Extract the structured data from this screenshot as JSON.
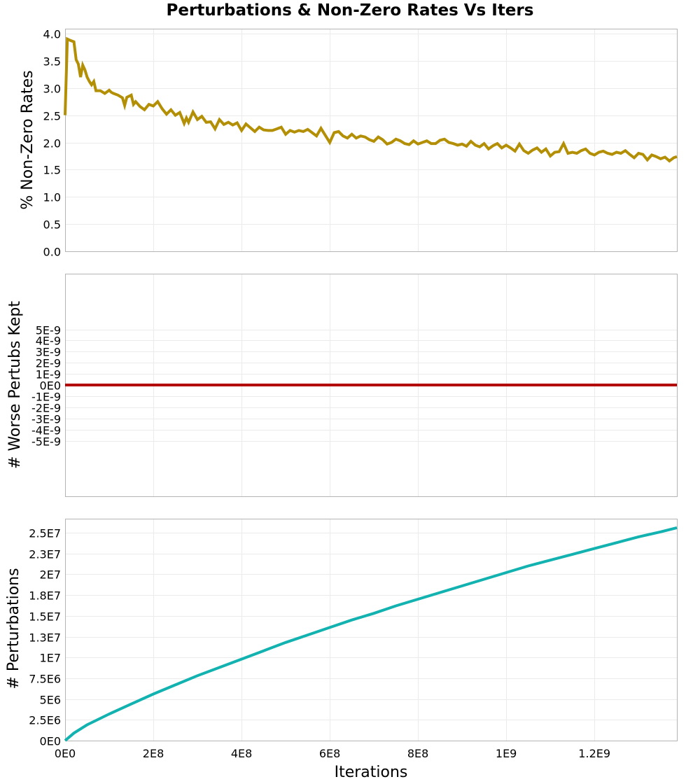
{
  "title": "Perturbations & Non-Zero Rates Vs Iters",
  "colors": {
    "nonzero": "#b38f06",
    "worse": "#b30000",
    "perturbations": "#12b2b0",
    "grid": "#ebebeb",
    "frame": "#b4b4b4"
  },
  "chart_data": [
    {
      "type": "line",
      "title": "Perturbations & Non-Zero Rates Vs Iters",
      "xlabel": "",
      "ylabel": "% Non-Zero Rates",
      "ylim": [
        0,
        4.0
      ],
      "xlim": [
        0,
        1387000000
      ],
      "grid": true,
      "yticks": [
        "0.0",
        "0.5",
        "1.0",
        "1.5",
        "2.0",
        "2.5",
        "3.0",
        "3.5",
        "4.0"
      ],
      "series": [
        {
          "name": "% Non-Zero Rates",
          "color": "#b38f06",
          "x": [
            0,
            5000000.0,
            10000000.0,
            20000000.0,
            25000000.0,
            30000000.0,
            35000000.0,
            40000000.0,
            45000000.0,
            50000000.0,
            55000000.0,
            60000000.0,
            65000000.0,
            70000000.0,
            75000000.0,
            80000000.0,
            90000000.0,
            100000000.0,
            105000000.0,
            110000000.0,
            120000000.0,
            130000000.0,
            135000000.0,
            140000000.0,
            150000000.0,
            155000000.0,
            160000000.0,
            170000000.0,
            180000000.0,
            190000000.0,
            200000000.0,
            210000000.0,
            220000000.0,
            230000000.0,
            240000000.0,
            250000000.0,
            260000000.0,
            270000000.0,
            275000000.0,
            280000000.0,
            290000000.0,
            300000000.0,
            310000000.0,
            320000000.0,
            330000000.0,
            340000000.0,
            350000000.0,
            360000000.0,
            370000000.0,
            380000000.0,
            390000000.0,
            400000000.0,
            410000000.0,
            420000000.0,
            430000000.0,
            440000000.0,
            450000000.0,
            460000000.0,
            470000000.0,
            480000000.0,
            490000000.0,
            500000000.0,
            510000000.0,
            520000000.0,
            530000000.0,
            540000000.0,
            550000000.0,
            560000000.0,
            570000000.0,
            580000000.0,
            590000000.0,
            600000000.0,
            610000000.0,
            620000000.0,
            630000000.0,
            640000000.0,
            650000000.0,
            660000000.0,
            670000000.0,
            680000000.0,
            690000000.0,
            700000000.0,
            710000000.0,
            720000000.0,
            730000000.0,
            740000000.0,
            750000000.0,
            760000000.0,
            770000000.0,
            780000000.0,
            790000000.0,
            800000000.0,
            810000000.0,
            820000000.0,
            830000000.0,
            840000000.0,
            850000000.0,
            860000000.0,
            870000000.0,
            880000000.0,
            890000000.0,
            900000000.0,
            910000000.0,
            920000000.0,
            930000000.0,
            940000000.0,
            950000000.0,
            960000000.0,
            970000000.0,
            980000000.0,
            990000000.0,
            1000000000.0,
            1010000000.0,
            1020000000.0,
            1030000000.0,
            1040000000.0,
            1050000000.0,
            1060000000.0,
            1070000000.0,
            1080000000.0,
            1090000000.0,
            1100000000.0,
            1110000000.0,
            1120000000.0,
            1130000000.0,
            1140000000.0,
            1150000000.0,
            1160000000.0,
            1170000000.0,
            1180000000.0,
            1190000000.0,
            1200000000.0,
            1210000000.0,
            1220000000.0,
            1230000000.0,
            1240000000.0,
            1250000000.0,
            1260000000.0,
            1270000000.0,
            1280000000.0,
            1290000000.0,
            1300000000.0,
            1310000000.0,
            1320000000.0,
            1330000000.0,
            1340000000.0,
            1350000000.0,
            1360000000.0,
            1370000000.0,
            1380000000.0,
            1387000000.0
          ],
          "values": [
            2.5,
            3.9,
            3.88,
            3.85,
            3.52,
            3.44,
            3.2,
            3.42,
            3.33,
            3.2,
            3.12,
            3.06,
            3.12,
            2.95,
            2.95,
            2.95,
            2.9,
            2.96,
            2.92,
            2.9,
            2.87,
            2.82,
            2.68,
            2.83,
            2.87,
            2.7,
            2.75,
            2.66,
            2.6,
            2.7,
            2.67,
            2.75,
            2.62,
            2.52,
            2.6,
            2.5,
            2.55,
            2.35,
            2.45,
            2.37,
            2.56,
            2.42,
            2.48,
            2.37,
            2.38,
            2.25,
            2.42,
            2.33,
            2.37,
            2.32,
            2.36,
            2.22,
            2.34,
            2.27,
            2.2,
            2.28,
            2.23,
            2.22,
            2.22,
            2.25,
            2.28,
            2.15,
            2.22,
            2.19,
            2.22,
            2.2,
            2.24,
            2.18,
            2.12,
            2.26,
            2.13,
            2.0,
            2.18,
            2.2,
            2.12,
            2.08,
            2.15,
            2.08,
            2.12,
            2.1,
            2.05,
            2.02,
            2.1,
            2.05,
            1.97,
            2.0,
            2.06,
            2.03,
            1.98,
            1.96,
            2.03,
            1.97,
            2.0,
            2.03,
            1.98,
            1.98,
            2.04,
            2.06,
            2.0,
            1.98,
            1.95,
            1.97,
            1.93,
            2.02,
            1.95,
            1.92,
            1.98,
            1.88,
            1.94,
            1.98,
            1.9,
            1.95,
            1.9,
            1.84,
            1.97,
            1.85,
            1.8,
            1.86,
            1.9,
            1.82,
            1.88,
            1.75,
            1.82,
            1.83,
            1.98,
            1.8,
            1.82,
            1.8,
            1.85,
            1.88,
            1.8,
            1.77,
            1.82,
            1.84,
            1.8,
            1.78,
            1.82,
            1.8,
            1.85,
            1.78,
            1.72,
            1.8,
            1.78,
            1.68,
            1.77,
            1.74,
            1.7,
            1.73,
            1.66,
            1.72,
            1.74
          ],
          "note": "values estimated from pixel positions"
        }
      ]
    },
    {
      "type": "line",
      "xlabel": "",
      "ylabel": "# Worse Pertubs Kept",
      "ylim": [
        -5e-09,
        5e-09
      ],
      "xlim": [
        0,
        1387000000
      ],
      "grid": true,
      "yticks": [
        "-5E-9",
        "-4E-9",
        "-3E-9",
        "-2E-9",
        "-1E-9",
        "0E0",
        "1E-9",
        "2E-9",
        "3E-9",
        "4E-9",
        "5E-9"
      ],
      "series": [
        {
          "name": "# Worse Pertubs Kept",
          "color": "#b30000",
          "x": [
            0,
            1387000000
          ],
          "values": [
            0,
            0
          ]
        }
      ]
    },
    {
      "type": "line",
      "xlabel": "Iterations",
      "ylabel": "# Perturbations",
      "ylim": [
        0,
        26500000
      ],
      "xlim": [
        0,
        1387000000
      ],
      "grid": true,
      "yticks": [
        "0E0",
        "2.5E6",
        "5E6",
        "7.5E6",
        "1E7",
        "1.3E7",
        "1.5E7",
        "1.8E7",
        "2E7",
        "2.3E7",
        "2.5E7"
      ],
      "xticks": [
        "0E0",
        "2E8",
        "4E8",
        "6E8",
        "8E8",
        "1E9",
        "1.2E9"
      ],
      "series": [
        {
          "name": "# Perturbations",
          "color": "#12b2b0",
          "x": [
            0,
            20000000.0,
            50000000.0,
            100000000.0,
            150000000.0,
            200000000.0,
            250000000.0,
            300000000.0,
            350000000.0,
            400000000.0,
            450000000.0,
            500000000.0,
            550000000.0,
            600000000.0,
            650000000.0,
            700000000.0,
            750000000.0,
            800000000.0,
            850000000.0,
            900000000.0,
            950000000.0,
            1000000000.0,
            1050000000.0,
            1100000000.0,
            1150000000.0,
            1200000000.0,
            1250000000.0,
            1300000000.0,
            1350000000.0,
            1387000000.0
          ],
          "values": [
            0,
            900000,
            1900000,
            3200000,
            4400000,
            5600000,
            6700000,
            7800000,
            8800000,
            9800000,
            10800000,
            11800000,
            12700000,
            13600000,
            14500000,
            15300000,
            16200000,
            17000000,
            17800000,
            18600000,
            19400000,
            20200000,
            21000000,
            21700000,
            22400000,
            23100000,
            23800000,
            24500000,
            25100000,
            25600000
          ]
        }
      ]
    }
  ],
  "panels": [
    {
      "ylabel": "% Non-Zero Rates",
      "ytick_labels": [
        "4.0",
        "3.5",
        "3.0",
        "2.5",
        "2.0",
        "1.5",
        "1.0",
        "0.5",
        "0.0"
      ]
    },
    {
      "ylabel": "# Worse Pertubs Kept",
      "ytick_labels": [
        "5E-9",
        "4E-9",
        "3E-9",
        "2E-9",
        "1E-9",
        "0E0",
        "-1E-9",
        "-2E-9",
        "-3E-9",
        "-4E-9",
        "-5E-9"
      ]
    },
    {
      "ylabel": "# Perturbations",
      "ytick_labels": [
        "2.5E7",
        "2.3E7",
        "2E7",
        "1.8E7",
        "1.5E7",
        "1.3E7",
        "1E7",
        "7.5E6",
        "5E6",
        "2.5E6",
        "0E0"
      ]
    }
  ],
  "xaxis": {
    "label": "Iterations",
    "tick_labels": [
      "0E0",
      "2E8",
      "4E8",
      "6E8",
      "8E8",
      "1E9",
      "1.2E9"
    ]
  }
}
